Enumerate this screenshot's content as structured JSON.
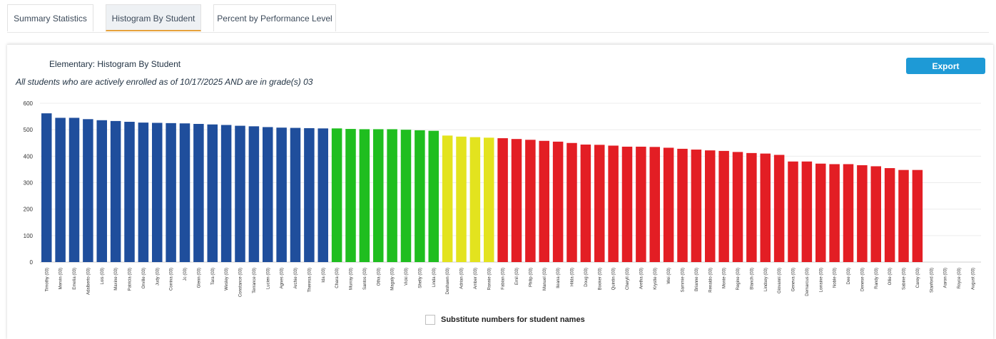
{
  "tabs": [
    {
      "label": "Summary Statistics"
    },
    {
      "label": "Histogram By Student"
    },
    {
      "label": "Percent by Performance Level"
    }
  ],
  "card": {
    "title": "Elementary: Histogram By Student",
    "subtitle": "All students who are actively enrolled as of 10/17/2025 AND are in grade(s) 03",
    "export_label": "Export"
  },
  "colors": {
    "blue": "#1f4e9c",
    "green": "#1fbe1f",
    "yellow": "#e3e31e",
    "red": "#e31e24"
  },
  "chart_data": {
    "type": "bar",
    "ylim": [
      0,
      600
    ],
    "yticks": [
      0,
      100,
      200,
      300,
      400,
      500,
      600
    ],
    "grid": true,
    "categories": [
      "Timothy (03)",
      "Mervin (03)",
      "Emelia (03)",
      "Adalberto (03)",
      "Lois (03)",
      "Maxine (03)",
      "Patricia (03)",
      "Orville (03)",
      "Judy (03)",
      "Corrina (03)",
      "Jc (03)",
      "Glenn (03)",
      "Tara (03)",
      "Wesley (03)",
      "Constance (03)",
      "Terrance (03)",
      "Lucien (03)",
      "Agnes (03)",
      "Archie (03)",
      "Theresa (03)",
      "Ida (03)",
      "Chara (03)",
      "Murray (03)",
      "Santos (03)",
      "Otha (03)",
      "Magaly (03)",
      "Vicki (03)",
      "Shelly (03)",
      "Linda (03)",
      "Deshawn (03)",
      "Adrian (03)",
      "Amber (03)",
      "Ronnie (03)",
      "Fabian (03)",
      "Emil (03)",
      "Philip (03)",
      "Manuel (03)",
      "Ileana (03)",
      "Hilda (03)",
      "Doug (03)",
      "Booker (03)",
      "Quintin (03)",
      "Cheryll (03)",
      "Aretha (03)",
      "Krystle (03)",
      "Wei (03)",
      "Sammie (03)",
      "Brianne (03)",
      "Renaldo (03)",
      "Monte (03)",
      "Regine (03)",
      "Blanch (03)",
      "Lindsey (03)",
      "Giovanni (03)",
      "Geneva (03)",
      "Demarcus (03)",
      "Lorraine (03)",
      "Noble (03)",
      "Dee (03)",
      "Denese (03)",
      "Randy (03)",
      "Ollie (03)",
      "Sabine (03)",
      "Carey (03)",
      "Stanford (03)",
      "Aaron (03)",
      "Royce (03)",
      "August (03)"
    ],
    "values": [
      562,
      545,
      545,
      540,
      536,
      533,
      530,
      527,
      526,
      525,
      524,
      522,
      520,
      518,
      515,
      513,
      510,
      508,
      507,
      506,
      505,
      505,
      503,
      502,
      502,
      502,
      500,
      498,
      496,
      478,
      474,
      472,
      470,
      468,
      465,
      462,
      458,
      455,
      450,
      444,
      443,
      440,
      436,
      436,
      435,
      432,
      428,
      425,
      422,
      420,
      416,
      412,
      410,
      405,
      380,
      380,
      372,
      370,
      370,
      366,
      362,
      355,
      348,
      348,
      null,
      null,
      null,
      null
    ],
    "bar_colors": [
      "blue",
      "blue",
      "blue",
      "blue",
      "blue",
      "blue",
      "blue",
      "blue",
      "blue",
      "blue",
      "blue",
      "blue",
      "blue",
      "blue",
      "blue",
      "blue",
      "blue",
      "blue",
      "blue",
      "blue",
      "blue",
      "green",
      "green",
      "green",
      "green",
      "green",
      "green",
      "green",
      "green",
      "yellow",
      "yellow",
      "yellow",
      "yellow",
      "red",
      "red",
      "red",
      "red",
      "red",
      "red",
      "red",
      "red",
      "red",
      "red",
      "red",
      "red",
      "red",
      "red",
      "red",
      "red",
      "red",
      "red",
      "red",
      "red",
      "red",
      "red",
      "red",
      "red",
      "red",
      "red",
      "red",
      "red",
      "red",
      "red",
      "red",
      "red",
      "red",
      "red",
      "red"
    ]
  },
  "options": {
    "substitute_label": "Substitute numbers for student names",
    "substitute_checked": false
  }
}
